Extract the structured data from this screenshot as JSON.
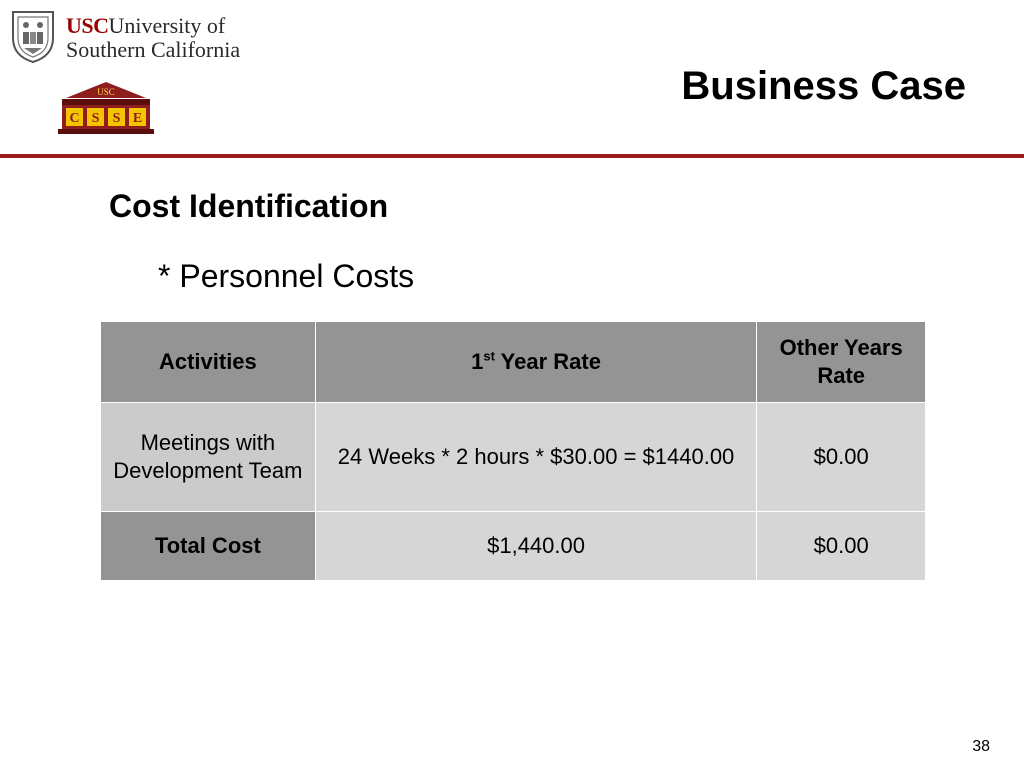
{
  "logos": {
    "university": {
      "abbrev": "USC",
      "line1": "University of",
      "line2": "Southern California"
    },
    "center": {
      "top_text": "USC",
      "letters": [
        "C",
        "S",
        "S",
        "E"
      ]
    }
  },
  "title": "Business Case",
  "section_heading": "Cost Identification",
  "bullet": "* Personnel Costs",
  "table": {
    "headers": {
      "activities": "Activities",
      "first_year_num": "1",
      "first_year_sup": "st",
      "first_year_rest": "Year Rate",
      "other_years": "Other Years Rate"
    },
    "rows": [
      {
        "activity": "Meetings with Development Team",
        "first_year": "24 Weeks * 2 hours * $30.00 = $1440.00",
        "other_years": "$0.00"
      }
    ],
    "total": {
      "label": "Total Cost",
      "first_year": "$1,440.00",
      "other_years": "$0.00"
    }
  },
  "page_number": "38",
  "colors": {
    "accent": "#9b1c1c",
    "usc_red": "#990000",
    "header_gray": "#949494",
    "cell_gray": "#d6d6d6",
    "logo_gold": "#f5c400"
  }
}
